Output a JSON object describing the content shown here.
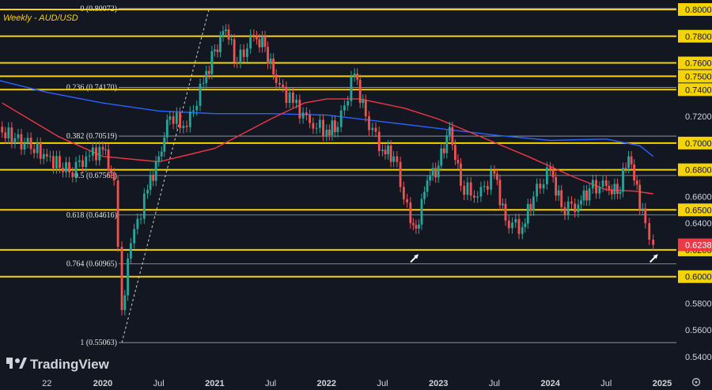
{
  "chart_data": {
    "type": "candlestick",
    "title": "Weekly - AUD/USD",
    "branding": "TradingView",
    "ylim": [
      0.5381,
      0.8072
    ],
    "y_ticks": [
      {
        "value": 0.8,
        "label": "0.80000",
        "highlight": true
      },
      {
        "value": 0.78,
        "label": "0.78000",
        "highlight": true
      },
      {
        "value": 0.76,
        "label": "0.76000",
        "highlight": true
      },
      {
        "value": 0.75,
        "label": "0.75000",
        "highlight": true
      },
      {
        "value": 0.74,
        "label": "0.74000",
        "highlight": true
      },
      {
        "value": 0.72,
        "label": "0.72000",
        "highlight": false
      },
      {
        "value": 0.7,
        "label": "0.70000",
        "highlight": true
      },
      {
        "value": 0.68,
        "label": "0.68000",
        "highlight": true
      },
      {
        "value": 0.66,
        "label": "0.66000",
        "highlight": false
      },
      {
        "value": 0.65,
        "label": "0.65000",
        "highlight": true
      },
      {
        "value": 0.64,
        "label": "0.64000",
        "highlight": false
      },
      {
        "value": 0.62,
        "label": "0.62000",
        "highlight": true
      },
      {
        "value": 0.6,
        "label": "0.60000",
        "highlight": true
      },
      {
        "value": 0.58,
        "label": "0.58000",
        "highlight": false
      },
      {
        "value": 0.56,
        "label": "0.56000",
        "highlight": false
      },
      {
        "value": 0.54,
        "label": "0.54000",
        "highlight": false
      }
    ],
    "current_price": {
      "value": 0.6238,
      "label": "0.62380",
      "color": "#f23645"
    },
    "x_ticks": [
      {
        "t": 2018.92,
        "label": "eb",
        "bold": false
      },
      {
        "t": 2019.5,
        "label": "22",
        "bold": false
      },
      {
        "t": 2020.0,
        "label": "2020",
        "bold": true
      },
      {
        "t": 2020.5,
        "label": "Jul",
        "bold": false
      },
      {
        "t": 2021.0,
        "label": "2021",
        "bold": true
      },
      {
        "t": 2021.5,
        "label": "Jul",
        "bold": false
      },
      {
        "t": 2022.0,
        "label": "2022",
        "bold": true
      },
      {
        "t": 2022.5,
        "label": "Jul",
        "bold": false
      },
      {
        "t": 2023.0,
        "label": "2023",
        "bold": true
      },
      {
        "t": 2023.5,
        "label": "Jul",
        "bold": false
      },
      {
        "t": 2024.0,
        "label": "2024",
        "bold": true
      },
      {
        "t": 2024.5,
        "label": "Jul",
        "bold": false
      },
      {
        "t": 2025.0,
        "label": "2025",
        "bold": true
      }
    ],
    "horizontal_levels": [
      0.8,
      0.78,
      0.76,
      0.75,
      0.74,
      0.7,
      0.68,
      0.65,
      0.62,
      0.6
    ],
    "fibonacci": [
      {
        "ratio_label": "0",
        "price": 0.80072,
        "text": "0 (0.80072)"
      },
      {
        "ratio_label": "0.236",
        "price": 0.7417,
        "text": "0.236 (0.74170)"
      },
      {
        "ratio_label": "0.382",
        "price": 0.70519,
        "text": "0.382 (0.70519)"
      },
      {
        "ratio_label": "0.5",
        "price": 0.67568,
        "text": "0.5 (0.67568)"
      },
      {
        "ratio_label": "0.618",
        "price": 0.64616,
        "text": "0.618 (0.64616)"
      },
      {
        "ratio_label": "0.764",
        "price": 0.60965,
        "text": "0.764 (0.60965)"
      },
      {
        "ratio_label": "1",
        "price": 0.55063,
        "text": "1 (0.55063)"
      }
    ],
    "fib_trendline": {
      "from": {
        "t": 2020.17,
        "p": 0.5506
      },
      "to": {
        "t": 2020.95,
        "p": 0.8007
      }
    },
    "ma_blue": [
      [
        2018.92,
        0.75
      ],
      [
        2019.5,
        0.738
      ],
      [
        2020.0,
        0.73
      ],
      [
        2020.5,
        0.724
      ],
      [
        2021.0,
        0.722
      ],
      [
        2021.5,
        0.722
      ],
      [
        2022.0,
        0.721
      ],
      [
        2022.5,
        0.716
      ],
      [
        2023.0,
        0.711
      ],
      [
        2023.5,
        0.706
      ],
      [
        2024.0,
        0.702
      ],
      [
        2024.5,
        0.703
      ],
      [
        2024.8,
        0.698
      ],
      [
        2024.92,
        0.69
      ]
    ],
    "ma_red": [
      [
        2019.1,
        0.73
      ],
      [
        2019.6,
        0.705
      ],
      [
        2020.0,
        0.69
      ],
      [
        2020.5,
        0.686
      ],
      [
        2021.0,
        0.696
      ],
      [
        2021.5,
        0.718
      ],
      [
        2021.8,
        0.73
      ],
      [
        2022.0,
        0.733
      ],
      [
        2022.3,
        0.733
      ],
      [
        2022.7,
        0.726
      ],
      [
        2023.0,
        0.718
      ],
      [
        2023.4,
        0.704
      ],
      [
        2023.8,
        0.69
      ],
      [
        2024.2,
        0.675
      ],
      [
        2024.5,
        0.665
      ],
      [
        2024.75,
        0.664
      ],
      [
        2024.92,
        0.662
      ]
    ],
    "series": [
      {
        "name": "AUD/USD weekly closes",
        "values": [
          [
            2018.92,
            0.712
          ],
          [
            2019.1,
            0.708
          ],
          [
            2019.3,
            0.7
          ],
          [
            2019.5,
            0.69
          ],
          [
            2019.7,
            0.678
          ],
          [
            2019.85,
            0.69
          ],
          [
            2020.0,
            0.695
          ],
          [
            2020.1,
            0.672
          ],
          [
            2020.17,
            0.575
          ],
          [
            2020.25,
            0.625
          ],
          [
            2020.4,
            0.665
          ],
          [
            2020.5,
            0.69
          ],
          [
            2020.6,
            0.72
          ],
          [
            2020.75,
            0.712
          ],
          [
            2020.9,
            0.745
          ],
          [
            2021.0,
            0.77
          ],
          [
            2021.1,
            0.785
          ],
          [
            2021.2,
            0.76
          ],
          [
            2021.35,
            0.78
          ],
          [
            2021.45,
            0.772
          ],
          [
            2021.55,
            0.745
          ],
          [
            2021.7,
            0.73
          ],
          [
            2021.85,
            0.715
          ],
          [
            2022.0,
            0.71
          ],
          [
            2022.1,
            0.712
          ],
          [
            2022.25,
            0.752
          ],
          [
            2022.35,
            0.72
          ],
          [
            2022.5,
            0.695
          ],
          [
            2022.6,
            0.69
          ],
          [
            2022.75,
            0.64
          ],
          [
            2022.8,
            0.636
          ],
          [
            2022.9,
            0.672
          ],
          [
            2023.0,
            0.683
          ],
          [
            2023.1,
            0.712
          ],
          [
            2023.2,
            0.668
          ],
          [
            2023.35,
            0.66
          ],
          [
            2023.5,
            0.677
          ],
          [
            2023.6,
            0.642
          ],
          [
            2023.75,
            0.637
          ],
          [
            2023.85,
            0.66
          ],
          [
            2024.0,
            0.68
          ],
          [
            2024.1,
            0.652
          ],
          [
            2024.25,
            0.654
          ],
          [
            2024.35,
            0.666
          ],
          [
            2024.5,
            0.668
          ],
          [
            2024.6,
            0.662
          ],
          [
            2024.7,
            0.69
          ],
          [
            2024.75,
            0.672
          ],
          [
            2024.85,
            0.64
          ],
          [
            2024.92,
            0.6238
          ]
        ]
      }
    ],
    "markers": [
      {
        "t": 2022.78,
        "p": 0.618,
        "label": "arrow"
      },
      {
        "t": 2024.92,
        "p": 0.618,
        "label": "arrow"
      }
    ]
  }
}
